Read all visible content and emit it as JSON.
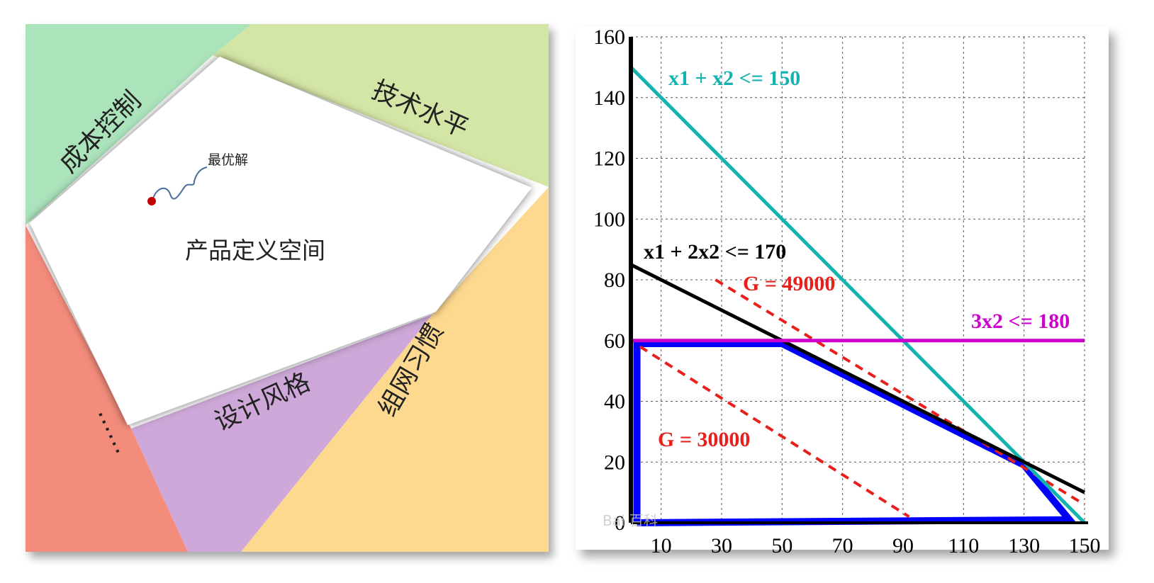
{
  "concept_diagram": {
    "center_label": "产品定义空间",
    "optimum_label": "最优解",
    "sectors": [
      {
        "label": "成本控制",
        "color": "#abe3bb"
      },
      {
        "label": "技术水平",
        "color": "#d4e6a6"
      },
      {
        "label": "组网习惯",
        "color": "#fdd98f"
      },
      {
        "label": "设计风格",
        "color": "#cda8d8"
      },
      {
        "label": "……",
        "color": "#f48c7c"
      }
    ],
    "optimum_color": "#c00000"
  },
  "chart_data": {
    "type": "line",
    "x_ticks": [
      10,
      30,
      50,
      70,
      90,
      110,
      130,
      150
    ],
    "y_ticks": [
      0,
      20,
      40,
      60,
      80,
      100,
      120,
      140,
      160
    ],
    "xlim": [
      0,
      150
    ],
    "ylim": [
      0,
      160
    ],
    "grid": true,
    "constraints": [
      {
        "label": "x1 + x2 <= 150",
        "color": "#14b3b0",
        "points": [
          [
            0,
            150
          ],
          [
            150,
            0
          ]
        ]
      },
      {
        "label": "x1 + 2x2 <= 170",
        "color": "#000000",
        "points": [
          [
            0,
            85
          ],
          [
            150,
            10
          ]
        ]
      },
      {
        "label": "3x2 <= 180",
        "color": "#cc00cc",
        "points": [
          [
            0,
            60
          ],
          [
            150,
            60
          ]
        ]
      }
    ],
    "objective_lines": [
      {
        "label": "G = 49000",
        "color": "#e8201c",
        "points": [
          [
            28,
            80
          ],
          [
            150,
            6
          ]
        ]
      },
      {
        "label": "G = 30000",
        "color": "#e8201c",
        "points": [
          [
            3,
            58
          ],
          [
            92,
            2
          ]
        ]
      }
    ],
    "feasible_region": {
      "color": "#0000ff",
      "points": [
        [
          2,
          0
        ],
        [
          2,
          59
        ],
        [
          50,
          59
        ],
        [
          130,
          19
        ],
        [
          145,
          1
        ],
        [
          2,
          0
        ]
      ]
    },
    "watermark": "Bai 百科"
  }
}
